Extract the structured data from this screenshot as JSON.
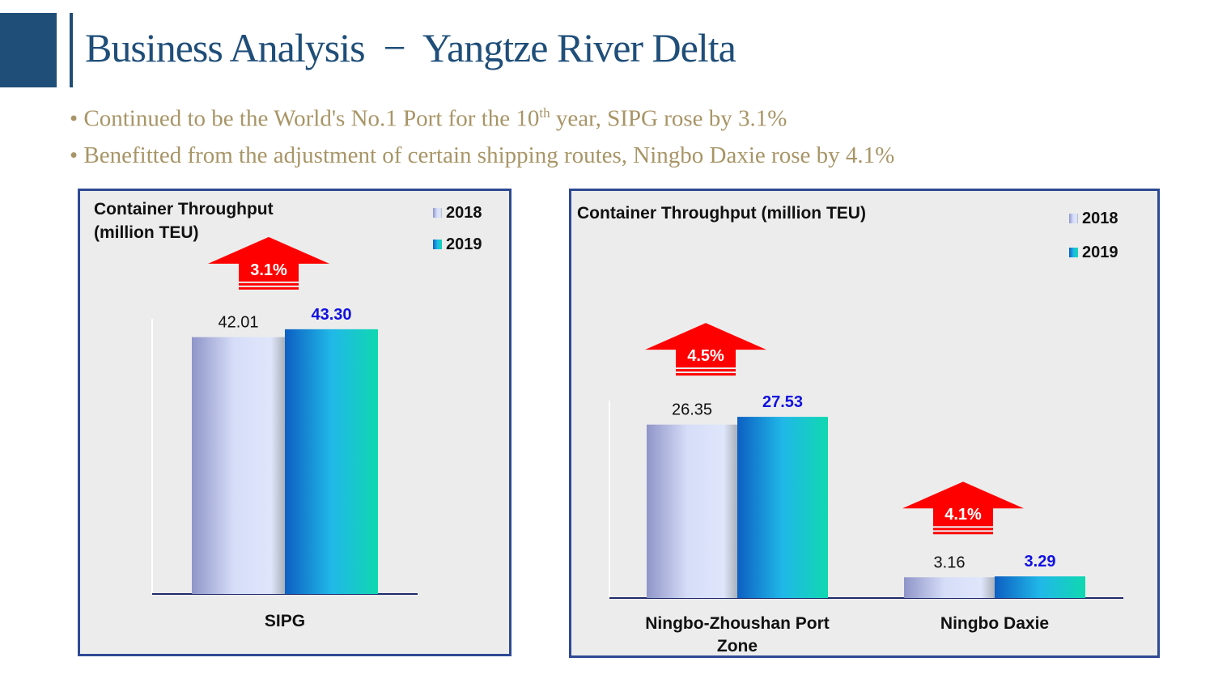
{
  "header": {
    "title": "Business Analysis  −  Yangtze River Delta"
  },
  "bullets": [
    {
      "pre": "• Continued to be the World's No.1 Port for the 10",
      "sup": "th",
      "post": " year, SIPG rose by 3.1%"
    },
    {
      "pre": "• Benefitted from the adjustment of certain shipping routes, Ningbo Daxie rose by 4.1%"
    }
  ],
  "chart_data": [
    {
      "type": "bar",
      "title": "Container Throughput (million TEU)",
      "title_lines": [
        "Container Throughput",
        "(million TEU)"
      ],
      "categories": [
        "SIPG"
      ],
      "ylim": [
        0,
        45
      ],
      "legend": "top-right",
      "series": [
        {
          "name": "2018",
          "values": [
            42.01
          ],
          "labels": [
            "42.01"
          ]
        },
        {
          "name": "2019",
          "values": [
            43.3
          ],
          "labels": [
            "43.30"
          ]
        }
      ],
      "annotations": [
        "3.1%"
      ]
    },
    {
      "type": "bar",
      "title": "Container Throughput (million TEU)",
      "title_lines": [
        "Container Throughput (million TEU)"
      ],
      "categories": [
        "Ningbo-Zhoushan Port Zone",
        "Ningbo Daxie"
      ],
      "category_lines": [
        [
          "Ningbo-Zhoushan Port",
          "Zone"
        ],
        [
          "Ningbo Daxie"
        ]
      ],
      "ylim": [
        0,
        30
      ],
      "legend": "top-right",
      "series": [
        {
          "name": "2018",
          "values": [
            26.35,
            3.16
          ],
          "labels": [
            "26.35",
            "3.16"
          ]
        },
        {
          "name": "2019",
          "values": [
            27.53,
            3.29
          ],
          "labels": [
            "27.53",
            "3.29"
          ]
        }
      ],
      "annotations": [
        "4.5%",
        "4.1%"
      ]
    }
  ],
  "colors": {
    "brand": "#1f4e79",
    "bullet": "#a89567",
    "arrow": "#ff0000",
    "label2019": "#1010e0",
    "axis": "#1f2a6b"
  }
}
